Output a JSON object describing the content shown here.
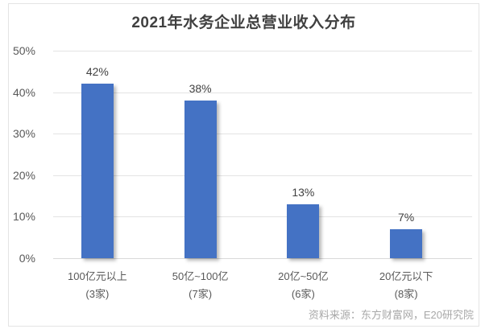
{
  "source": "资料来源：东方财富网，E20研究院",
  "colors": {
    "bar": "#4472C4",
    "grid": "#e3e3e3",
    "axis_text": "#595959",
    "title_text": "#404040",
    "source_text": "#a8a8a8"
  },
  "chart_data": {
    "type": "bar",
    "title": "2021年水务企业总营业收入分布",
    "categories": [
      "100亿元以上",
      "50亿~100亿",
      "20亿~50亿",
      "20亿元以下"
    ],
    "category_counts": [
      "(3家)",
      "(7家)",
      "(6家)",
      "(8家)"
    ],
    "values": [
      42,
      38,
      13,
      7
    ],
    "value_labels": [
      "42%",
      "38%",
      "13%",
      "7%"
    ],
    "ylim": [
      0,
      50
    ],
    "yticks": [
      0,
      10,
      20,
      30,
      40,
      50
    ],
    "ytick_labels": [
      "0%",
      "10%",
      "20%",
      "30%",
      "40%",
      "50%"
    ],
    "grid": true,
    "legend": false,
    "bar_color": "#4472C4"
  }
}
